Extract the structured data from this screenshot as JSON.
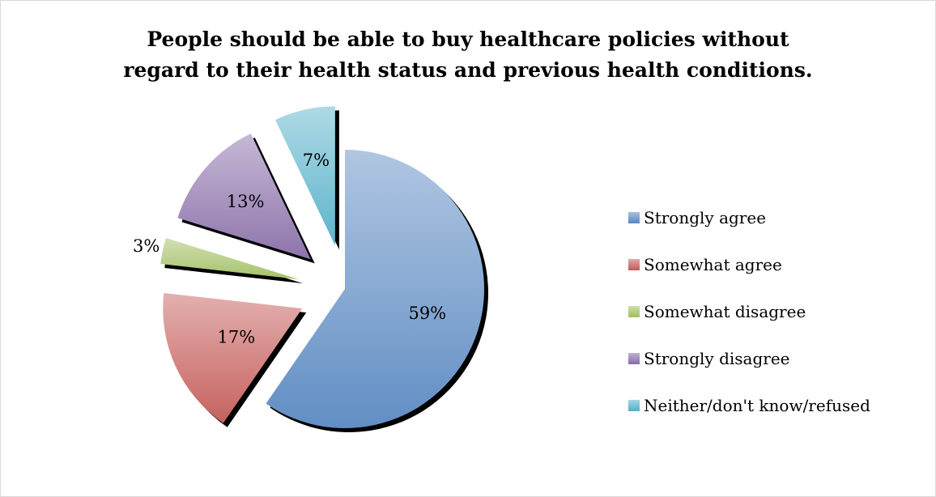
{
  "chart_data": {
    "type": "pie",
    "title_lines": [
      "People should be able to buy healthcare policies without",
      "regard to their health status and previous health conditions."
    ],
    "categories": [
      "Strongly agree",
      "Somewhat agree",
      "Somewhat disagree",
      "Strongly disagree",
      "Neither/don't know/refused"
    ],
    "values": [
      59,
      17,
      3,
      13,
      7
    ],
    "labels": [
      "59%",
      "17%",
      "3%",
      "13%",
      "7%"
    ],
    "colors": [
      "#4f81bd",
      "#c0504d",
      "#9bbb59",
      "#8064a2",
      "#4bacc6"
    ],
    "legend_position": "right",
    "exploded": true
  }
}
